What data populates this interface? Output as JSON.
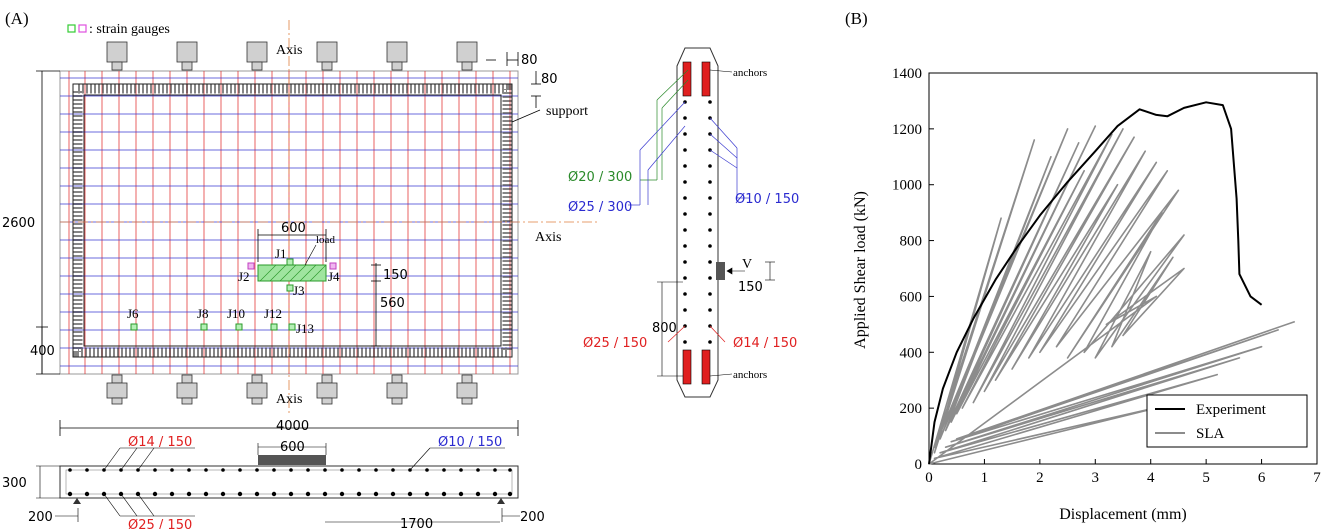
{
  "panelA": {
    "label": "(A)",
    "legend_text": ": strain gauges",
    "axis_top": "Axis",
    "axis_bottom": "Axis",
    "axis_right": "Axis",
    "dim_80a": "80",
    "dim_80b": "80",
    "support": "support",
    "dim_2600": "2600",
    "dim_400": "400",
    "dim_600_top": "600",
    "load": "load",
    "dim_150": "150",
    "dim_560": "560",
    "dim_4000": "4000",
    "gauges": {
      "J1": "J1",
      "J2": "J2",
      "J3": "J3",
      "J4": "J4",
      "J6": "J6",
      "J8": "J8",
      "J10": "J10",
      "J12": "J12",
      "J13": "J13"
    },
    "section": {
      "rebar_top_left": "Ø14 / 150",
      "dim_600": "600",
      "rebar_top_right": "Ø10 / 150",
      "dim_300": "300",
      "dim_200_left": "200",
      "dim_200_right": "200",
      "rebar_bottom": "Ø25 / 150",
      "dim_1700": "1700"
    },
    "wall": {
      "anchors_top": "anchors",
      "anchors_bottom": "anchors",
      "r_20_300": "Ø20 / 300",
      "r_25_300": "Ø25 / 300",
      "r_10_150": "Ø10 / 150",
      "V": "V",
      "dim_150": "150",
      "dim_800": "800",
      "r_25_150": "Ø25 / 150",
      "r_14_150": "Ø14 / 150"
    }
  },
  "panelB": {
    "label": "(B)",
    "legend_experiment": "Experiment",
    "legend_sla": "SLA"
  },
  "chart_data": {
    "type": "line",
    "xlabel": "Displacement (mm)",
    "ylabel": "Applied Shear load (kN)",
    "xlim": [
      0,
      7
    ],
    "ylim": [
      0,
      1400
    ],
    "xticks": [
      "0",
      "1",
      "2",
      "3",
      "4",
      "5",
      "6",
      "7"
    ],
    "yticks": [
      "0",
      "200",
      "400",
      "600",
      "800",
      "1000",
      "1200",
      "1400"
    ],
    "legend_position": "bottom-right",
    "series": [
      {
        "name": "Experiment",
        "color": "#000000",
        "x": [
          0,
          0.1,
          0.25,
          0.5,
          0.8,
          1.2,
          1.6,
          2.0,
          2.5,
          3.0,
          3.4,
          3.8,
          4.1,
          4.3,
          4.6,
          5.0,
          5.3,
          5.45,
          5.55,
          5.58,
          5.6,
          5.8,
          6.0
        ],
        "y": [
          0,
          150,
          270,
          400,
          520,
          660,
          780,
          890,
          1010,
          1120,
          1210,
          1270,
          1250,
          1245,
          1275,
          1295,
          1285,
          1200,
          950,
          800,
          680,
          600,
          570
        ]
      },
      {
        "name": "SLA",
        "color": "#8c8c8c",
        "x": [
          0,
          1.3,
          0.1,
          1.9,
          0.1,
          2.5,
          0.2,
          2.2,
          0.3,
          2.7,
          0.4,
          3.0,
          0.5,
          2.8,
          0.6,
          3.3,
          0.8,
          3.5,
          1.0,
          3.7,
          1.2,
          3.4,
          1.5,
          3.9,
          1.8,
          4.1,
          2.0,
          4.3,
          2.3,
          4.5,
          2.5,
          4.2,
          2.8,
          4.6,
          3.0,
          4.0,
          3.3,
          4.4,
          3.5,
          4.6,
          3.2,
          4.1,
          0,
          4.5,
          0.1,
          5.2,
          0.2,
          5.6,
          0.3,
          6.0,
          0.4,
          6.3,
          0.5,
          6.6
        ],
        "y": [
          0,
          880,
          40,
          1160,
          60,
          1200,
          90,
          1100,
          120,
          1150,
          150,
          1210,
          180,
          1050,
          200,
          1180,
          220,
          1200,
          260,
          1170,
          300,
          1000,
          340,
          1120,
          380,
          1080,
          400,
          1050,
          420,
          980,
          380,
          900,
          400,
          820,
          380,
          760,
          420,
          740,
          460,
          700,
          500,
          600,
          0,
          220,
          20,
          320,
          40,
          380,
          60,
          420,
          80,
          480,
          90,
          510
        ]
      }
    ]
  }
}
